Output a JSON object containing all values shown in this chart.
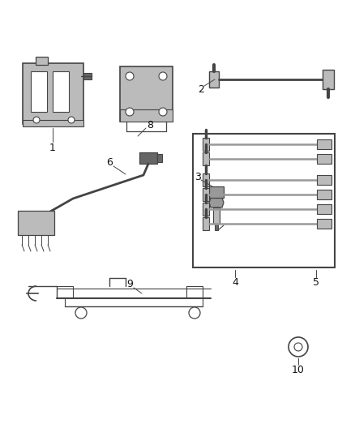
{
  "background_color": "#ffffff",
  "fig_width": 4.38,
  "fig_height": 5.33,
  "dpi": 100,
  "line_color": "#444444",
  "light_gray": "#bbbbbb",
  "mid_gray": "#999999",
  "dark_gray": "#666666"
}
